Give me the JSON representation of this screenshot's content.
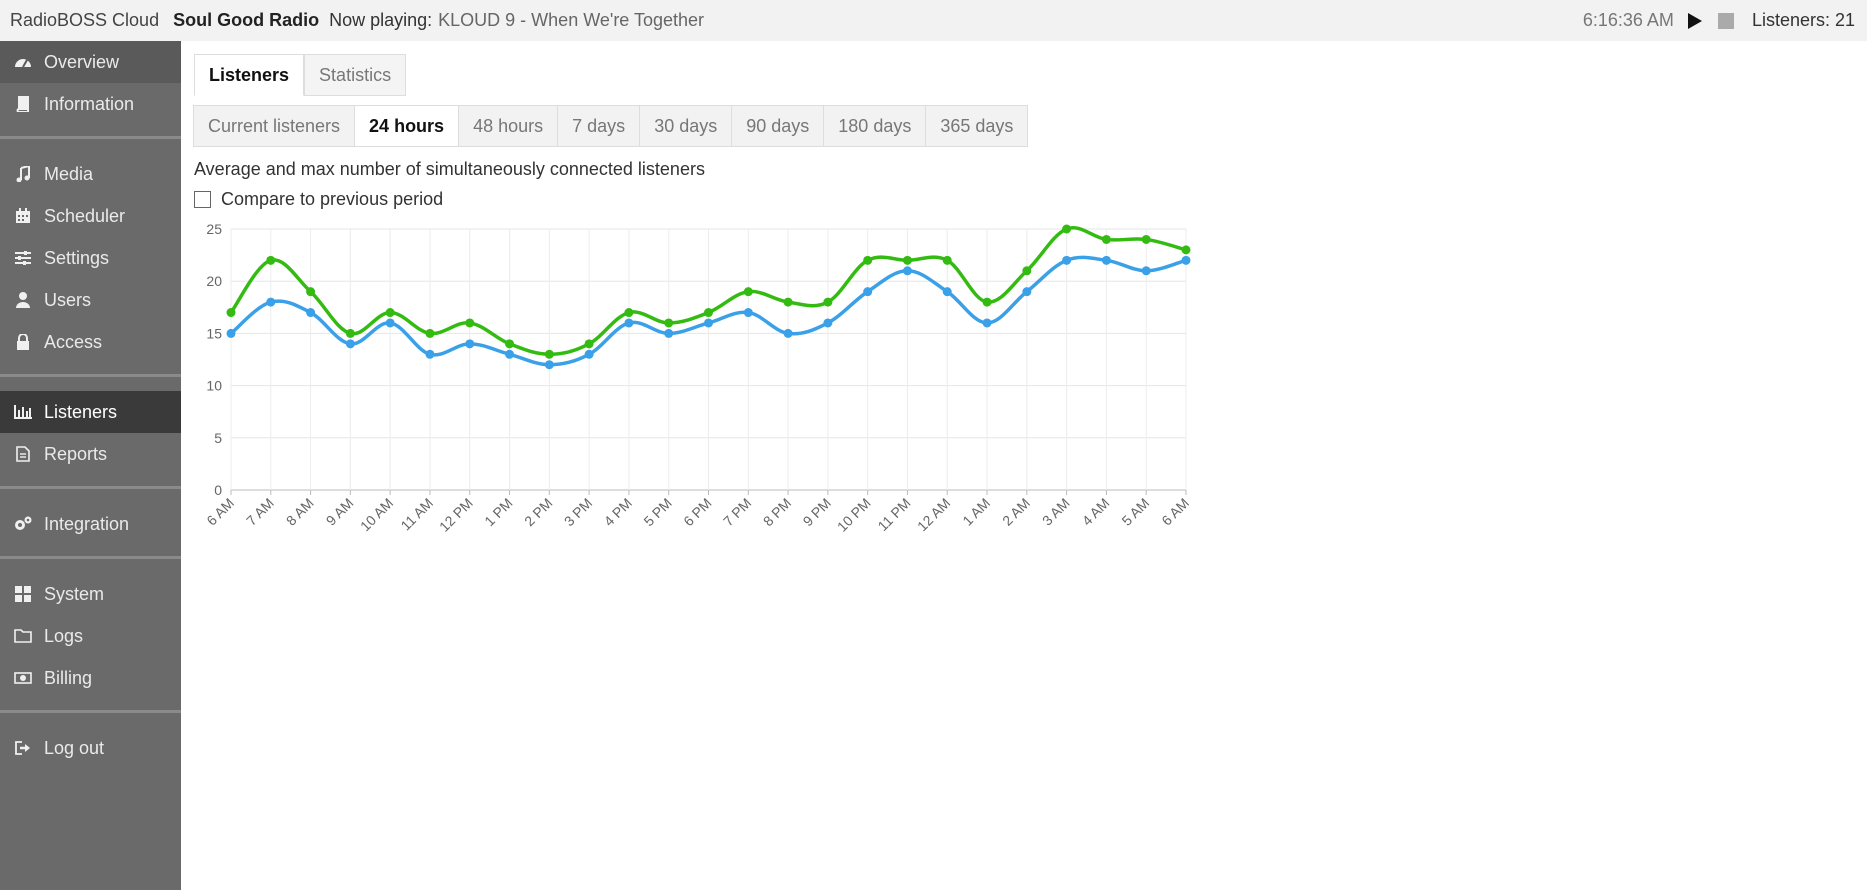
{
  "topbar": {
    "app_name": "RadioBOSS Cloud",
    "station": "Soul Good Radio",
    "now_playing_label": "Now playing:",
    "now_playing_track": "KLOUD 9 - When We're Together",
    "clock": "6:16:36 AM",
    "listeners": "Listeners: 21"
  },
  "sidebar": {
    "items": [
      {
        "label": "Overview",
        "icon": "gauge-icon"
      },
      {
        "label": "Information",
        "icon": "book-icon"
      },
      {
        "label": "Media",
        "icon": "music-icon"
      },
      {
        "label": "Scheduler",
        "icon": "calendar-icon"
      },
      {
        "label": "Settings",
        "icon": "sliders-icon"
      },
      {
        "label": "Users",
        "icon": "user-icon"
      },
      {
        "label": "Access",
        "icon": "lock-icon"
      },
      {
        "label": "Listeners",
        "icon": "bar-chart-icon"
      },
      {
        "label": "Reports",
        "icon": "document-icon"
      },
      {
        "label": "Integration",
        "icon": "gears-icon"
      },
      {
        "label": "System",
        "icon": "grid-icon"
      },
      {
        "label": "Logs",
        "icon": "folder-icon"
      },
      {
        "label": "Billing",
        "icon": "money-icon"
      },
      {
        "label": "Log out",
        "icon": "sign-out-icon"
      }
    ]
  },
  "tabs": [
    "Listeners",
    "Statistics"
  ],
  "periods": [
    "Current listeners",
    "24 hours",
    "48 hours",
    "7 days",
    "30 days",
    "90 days",
    "180 days",
    "365 days"
  ],
  "description": "Average and max number of simultaneously connected listeners",
  "compare_label": "Compare to previous period",
  "colors": {
    "max": "#33bb11",
    "avg": "#3aa0e8",
    "active_nav": "#3a3a3a"
  },
  "chart_data": {
    "type": "line",
    "categories": [
      "6 AM",
      "7 AM",
      "8 AM",
      "9 AM",
      "10 AM",
      "11 AM",
      "12 PM",
      "1 PM",
      "2 PM",
      "3 PM",
      "4 PM",
      "5 PM",
      "6 PM",
      "7 PM",
      "8 PM",
      "9 PM",
      "10 PM",
      "11 PM",
      "12 AM",
      "1 AM",
      "2 AM",
      "3 AM",
      "4 AM",
      "5 AM",
      "6 AM"
    ],
    "series": [
      {
        "values": [
          17,
          22,
          19,
          15,
          17,
          15,
          16,
          14,
          13,
          14,
          17,
          16,
          17,
          19,
          18,
          18,
          22,
          22,
          22,
          18,
          21,
          25,
          24,
          24,
          23
        ]
      },
      {
        "values": [
          15,
          18,
          17,
          14,
          16,
          13,
          14,
          13,
          12,
          13,
          16,
          15,
          16,
          17,
          15,
          16,
          19,
          21,
          19,
          16,
          19,
          22,
          22,
          21,
          22
        ]
      }
    ],
    "ylim": [
      0,
      25
    ],
    "yticks": [
      0,
      5,
      10,
      15,
      20,
      25
    ],
    "grid": true
  }
}
